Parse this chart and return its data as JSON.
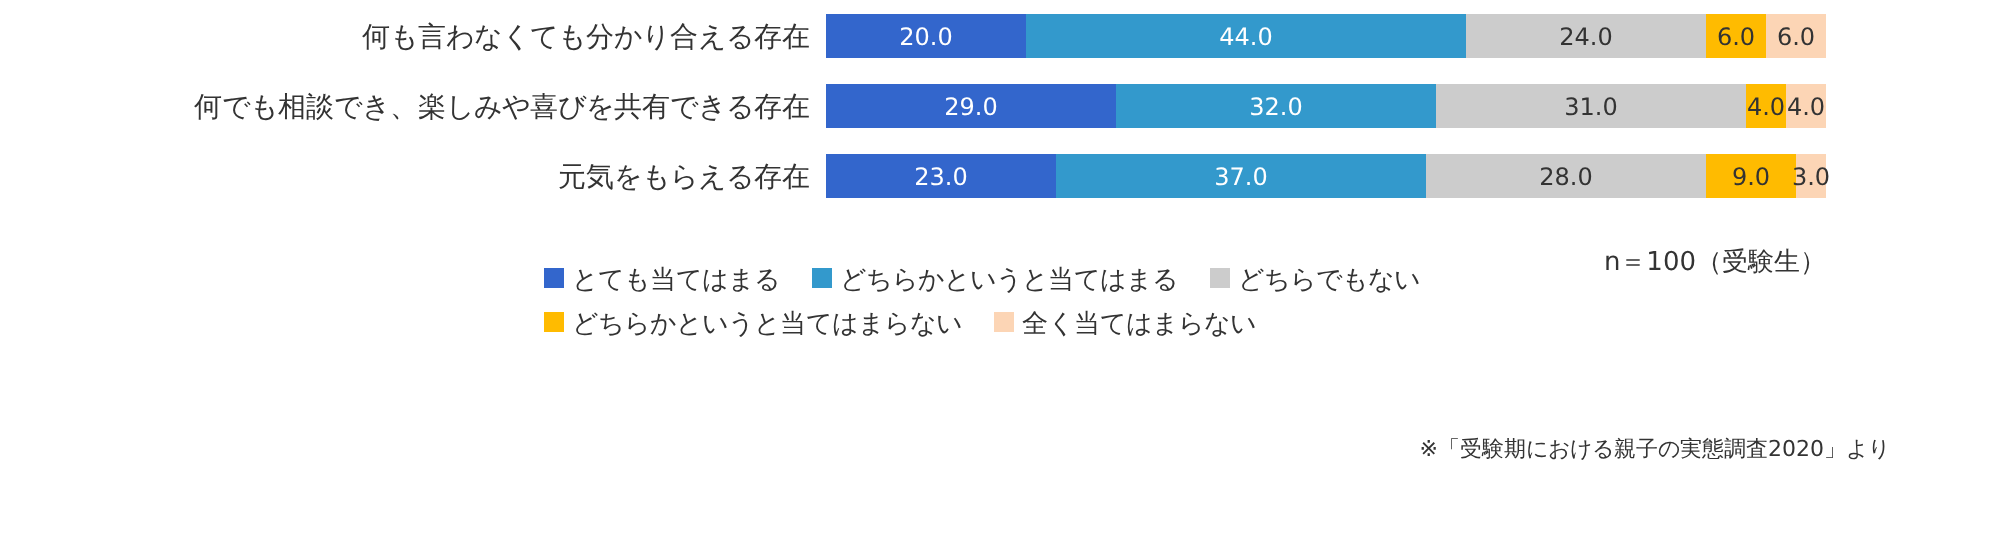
{
  "chart_data": {
    "type": "bar",
    "orientation": "horizontal",
    "stacked": true,
    "xlim": [
      0,
      100
    ],
    "legend": "bottom",
    "categories": [
      "何も言わなくても分かり合える存在",
      "何でも相談でき、楽しみや喜びを共有できる存在",
      "元気をもらえる存在"
    ],
    "series": [
      {
        "name": "とても当てはまる",
        "color": "#3366cc",
        "values": [
          20.0,
          29.0,
          23.0
        ],
        "value_labels": [
          "20.0",
          "29.0",
          "23.0"
        ]
      },
      {
        "name": "どちらかというと当てはまる",
        "color": "#3399cc",
        "values": [
          44.0,
          32.0,
          37.0
        ],
        "value_labels": [
          "44.0",
          "32.0",
          "37.0"
        ]
      },
      {
        "name": "どちらでもない",
        "color": "#cccccc",
        "values": [
          24.0,
          31.0,
          28.0
        ],
        "value_labels": [
          "24.0",
          "31.0",
          "28.0"
        ]
      },
      {
        "name": "どちらかというと当てはまらない",
        "color": "#ffbb00",
        "values": [
          6.0,
          4.0,
          9.0
        ],
        "value_labels": [
          "6.0",
          "4.0",
          "9.0"
        ]
      },
      {
        "name": "全く当てはまらない",
        "color": "#fcd5b5",
        "values": [
          6.0,
          4.0,
          3.0
        ],
        "value_labels": [
          "6.0",
          "4.0",
          "3.0"
        ]
      }
    ],
    "annotations": [
      "n＝100（受験生）",
      "※「受験期における親子の実態調査2020」より"
    ]
  }
}
